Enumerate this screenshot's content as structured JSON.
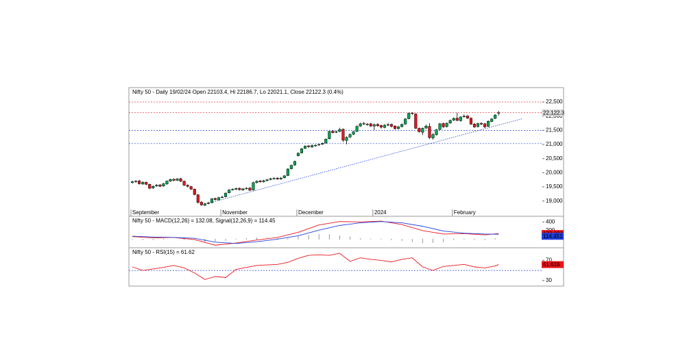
{
  "chart_data": [
    {
      "type": "candlestick",
      "title": "Nifty 50 - Daily 19/02/24 Open 22103.4, Hi 22186.7, Lo 22021.1, Close 22122.3 (0.4%)",
      "open": [
        19650,
        19690,
        19710,
        19600,
        19660,
        19590,
        19460,
        19530,
        19570,
        19530,
        19600,
        19700,
        19770,
        19730,
        19790,
        19700,
        19560,
        19510,
        19420,
        19220,
        18960,
        18850,
        18910,
        18940,
        19090,
        19040,
        19130,
        19150,
        19290,
        19400,
        19410,
        19450,
        19390,
        19440,
        19460,
        19390,
        19650,
        19710,
        19680,
        19720,
        19760,
        19790,
        19810,
        19780,
        19820,
        19900,
        20140,
        20270,
        20600,
        20700,
        20860,
        20950,
        20910,
        20960,
        20980,
        21010,
        21050,
        21200,
        21470,
        21430,
        21460,
        21540,
        21140,
        21260,
        21360,
        21460,
        21650,
        21740,
        21720,
        21730,
        21650,
        21710,
        21670,
        21600,
        21690,
        21710,
        21650,
        21560,
        21630,
        21720,
        21910,
        22110,
        22080,
        21570,
        21430,
        21580,
        21640,
        21230,
        21340,
        21530,
        21740,
        21630,
        21760,
        21860,
        21930,
        21840,
        21980,
        22010,
        21930,
        21720,
        21630,
        21750,
        21730,
        21640,
        21810,
        21920,
        22103.4
      ],
      "high": [
        19720,
        19740,
        19750,
        19700,
        19690,
        19610,
        19550,
        19600,
        19600,
        19640,
        19730,
        19790,
        19800,
        19810,
        19820,
        19720,
        19590,
        19540,
        19440,
        19250,
        18990,
        18940,
        18970,
        19100,
        19120,
        19150,
        19180,
        19300,
        19420,
        19450,
        19470,
        19480,
        19460,
        19490,
        19490,
        19680,
        19730,
        19740,
        19750,
        19780,
        19820,
        19840,
        19840,
        19850,
        19920,
        20160,
        20290,
        20430,
        20720,
        20870,
        20970,
        20980,
        21000,
        21010,
        21030,
        21070,
        21210,
        21490,
        21500,
        21490,
        21590,
        21560,
        21290,
        21390,
        21480,
        21670,
        21770,
        21800,
        21760,
        21760,
        21740,
        21750,
        21700,
        21720,
        21760,
        21740,
        21680,
        21660,
        21740,
        21930,
        22130,
        22140,
        22100,
        21600,
        21600,
        21700,
        21750,
        21400,
        21550,
        21760,
        21770,
        21780,
        21880,
        21960,
        22120,
        22000,
        22060,
        22030,
        21950,
        21760,
        21770,
        21780,
        21760,
        21850,
        21930,
        22070,
        22186.7
      ],
      "low": [
        19620,
        19650,
        19580,
        19570,
        19560,
        19420,
        19430,
        19500,
        19490,
        19500,
        19580,
        19680,
        19700,
        19710,
        19670,
        19530,
        19480,
        19390,
        19200,
        18910,
        18830,
        18820,
        18880,
        18920,
        19020,
        19020,
        19100,
        19130,
        19270,
        19370,
        19390,
        19370,
        19360,
        19410,
        19350,
        19370,
        19620,
        19650,
        19650,
        19690,
        19730,
        19760,
        19750,
        19750,
        19800,
        19880,
        20120,
        20250,
        20580,
        20680,
        20840,
        20880,
        20880,
        20920,
        20950,
        20980,
        21030,
        21180,
        21390,
        21400,
        21430,
        21090,
        21000,
        21230,
        21330,
        21440,
        21620,
        21690,
        21660,
        21620,
        21500,
        21620,
        21560,
        21570,
        21650,
        21600,
        21520,
        21530,
        21600,
        21700,
        21890,
        22050,
        21550,
        21420,
        21330,
        21550,
        21190,
        21170,
        21320,
        21500,
        21590,
        21600,
        21730,
        21830,
        21820,
        21810,
        21950,
        21900,
        21690,
        21580,
        21600,
        21680,
        21580,
        21610,
        21790,
        21900,
        22021.1
      ],
      "close": [
        19680,
        19700,
        19610,
        19660,
        19590,
        19450,
        19520,
        19560,
        19520,
        19610,
        19700,
        19760,
        19730,
        19780,
        19700,
        19560,
        19520,
        19420,
        19230,
        18950,
        18860,
        18900,
        18930,
        19080,
        19050,
        19120,
        19140,
        19280,
        19390,
        19410,
        19440,
        19400,
        19430,
        19450,
        19380,
        19650,
        19700,
        19680,
        19720,
        19750,
        19790,
        19800,
        19780,
        19810,
        19890,
        20130,
        20260,
        20400,
        20690,
        20850,
        20940,
        20920,
        20960,
        20970,
        21000,
        21040,
        21190,
        21460,
        21420,
        21450,
        21530,
        21150,
        21250,
        21350,
        21450,
        21640,
        21730,
        21730,
        21720,
        21650,
        21700,
        21660,
        21610,
        21680,
        21700,
        21640,
        21560,
        21620,
        21710,
        21900,
        22100,
        22090,
        21570,
        21450,
        21570,
        21650,
        21240,
        21350,
        21520,
        21730,
        21620,
        21750,
        21850,
        21920,
        21850,
        21970,
        22000,
        21930,
        21720,
        21620,
        21740,
        21720,
        21620,
        21820,
        21900,
        22040.7,
        22122.3
      ],
      "up_color": "#00a651",
      "down_color": "#e8141b",
      "xlim": [
        -1,
        124.8
      ],
      "xticks": [
        {
          "value": 0,
          "label": "September"
        },
        {
          "value": 26,
          "label": "November"
        },
        {
          "value": 48,
          "label": "December"
        },
        {
          "value": 70,
          "label": "2024"
        },
        {
          "value": 93,
          "label": "February"
        }
      ],
      "ylim": [
        18460,
        23010
      ],
      "yticks": [
        {
          "value": 19000,
          "label": "19,000"
        },
        {
          "value": 19500,
          "label": "19,500"
        },
        {
          "value": 20000,
          "label": "20,000"
        },
        {
          "value": 20500,
          "label": "20,500"
        },
        {
          "value": 21000,
          "label": "21,000"
        },
        {
          "value": 21500,
          "label": "21,500"
        },
        {
          "value": 22000,
          "label": "22,000"
        },
        {
          "value": 22500,
          "label": "22,500"
        }
      ],
      "hlines": [
        {
          "value": 22500,
          "color": "#e8141b"
        },
        {
          "value": 22122.3,
          "color": "#e8141b"
        },
        {
          "value": 21500,
          "color": "#1f3fdc"
        },
        {
          "value": 21030,
          "color": "#1f3fdc"
        }
      ],
      "trendline": {
        "x": [
          21,
          113
        ],
        "y": [
          18890,
          21915
        ],
        "color": "#1f3fdc"
      },
      "last_label": "22,122.3"
    },
    {
      "type": "line",
      "title": "Nifty 50 - MACD(12,26) = 132.08, Signal(12,26,9) = 114.45",
      "x": [
        0,
        6,
        12,
        18,
        24,
        30,
        36,
        42,
        48,
        54,
        60,
        66,
        72,
        78,
        84,
        90,
        96,
        102,
        106
      ],
      "series": [
        {
          "color": "#e8141b",
          "values": [
            60,
            30,
            40,
            -10,
            -140,
            -90,
            -20,
            40,
            160,
            330,
            410,
            400,
            420,
            340,
            200,
            120,
            130,
            100,
            132.082
          ],
          "value_label": "132.082"
        },
        {
          "color": "#1f3fdc",
          "values": [
            70,
            50,
            40,
            20,
            -70,
            -100,
            -60,
            0,
            80,
            210,
            320,
            380,
            410,
            380,
            300,
            190,
            140,
            120,
            114.451
          ],
          "value_label": "114.451"
        }
      ],
      "histogram": {
        "x": [
          0,
          3,
          6,
          9,
          12,
          15,
          18,
          21,
          24,
          27,
          30,
          33,
          36,
          39,
          42,
          45,
          48,
          51,
          54,
          57,
          60,
          63,
          66,
          69,
          72,
          75,
          78,
          81,
          84,
          87,
          90,
          93,
          96,
          99,
          102,
          105
        ],
        "values": [
          -10,
          -15,
          -20,
          -10,
          0,
          -15,
          -30,
          -60,
          -70,
          -40,
          10,
          30,
          40,
          40,
          40,
          60,
          80,
          100,
          120,
          110,
          90,
          50,
          20,
          10,
          10,
          -20,
          -40,
          -70,
          -100,
          -90,
          -70,
          -30,
          -10,
          -15,
          -20,
          15
        ],
        "color": "#000000"
      },
      "xlim": [
        -1,
        124.8
      ],
      "ylim": [
        -200,
        533
      ],
      "yticks": [
        400,
        200
      ]
    },
    {
      "type": "line",
      "title": "Nifty 50 - RSI(15) = 61.62",
      "x": [
        0,
        3,
        6,
        9,
        12,
        15,
        18,
        21,
        24,
        27,
        30,
        33,
        36,
        39,
        42,
        45,
        48,
        51,
        54,
        57,
        60,
        63,
        66,
        69,
        72,
        75,
        78,
        81,
        84,
        87,
        90,
        93,
        96,
        99,
        102,
        105,
        106
      ],
      "series": [
        {
          "color": "#e8141b",
          "values": [
            57,
            50,
            53,
            56,
            60,
            55,
            45,
            32,
            38,
            36,
            52,
            56,
            60,
            61,
            62,
            66,
            74,
            80,
            81,
            80,
            84,
            68,
            75,
            72,
            70,
            67,
            72,
            75,
            57,
            50,
            58,
            60,
            62,
            57,
            55,
            59,
            61.616
          ],
          "value_label": "61.616"
        }
      ],
      "hlines": [
        {
          "value": 50,
          "color": "#1f3fdc"
        }
      ],
      "xlim": [
        -1,
        124.8
      ],
      "ylim": [
        19,
        95
      ],
      "yticks": [
        70,
        30
      ]
    }
  ]
}
